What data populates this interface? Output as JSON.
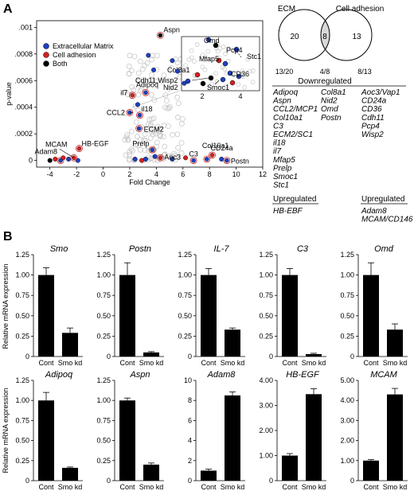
{
  "panel_a_label": "A",
  "panel_b_label": "B",
  "colors": {
    "ecm": "#1f3fbf",
    "cell_adhesion": "#d62020",
    "both": "#000000",
    "bg": "#c8c8c8",
    "bar": "#000000"
  },
  "chart_data": [
    {
      "type": "scatter",
      "xlabel": "Fold Change",
      "ylabel": "p-value",
      "xlim": [
        -5,
        12
      ],
      "ylim": [
        -5e-05,
        0.00105
      ],
      "xticks": [
        -4,
        -2,
        0,
        2,
        4,
        6,
        8,
        10,
        12
      ],
      "yticks": [
        0,
        0.0002,
        0.0004,
        0.0006,
        0.0008,
        0.001
      ],
      "ytick_labels": [
        "0",
        ".0002",
        ".0004",
        ".0006",
        ".0008",
        ".001"
      ],
      "legend_position": "top-left",
      "legend": [
        {
          "name": "Extracellular Matrix",
          "color": "#1f3fbf"
        },
        {
          "name": "Cell adhesion",
          "color": "#d62020"
        },
        {
          "name": "Both",
          "color": "#000000"
        }
      ],
      "labeled_points": [
        {
          "label": "Aspn",
          "x": 4.3,
          "y": 0.00094,
          "cat": "both"
        },
        {
          "label": "Adipoq",
          "x": 3.2,
          "y": 0.00051,
          "cat": "ecm"
        },
        {
          "label": "il7",
          "x": 2.2,
          "y": 0.00049,
          "cat": "cell"
        },
        {
          "label": "il18",
          "x": 2.75,
          "y": 0.00034,
          "cat": "ecm"
        },
        {
          "label": "CCL2",
          "x": 2.0,
          "y": 0.00036,
          "cat": "ecm"
        },
        {
          "label": "ECM2",
          "x": 2.7,
          "y": 0.00024,
          "cat": "ecm"
        },
        {
          "label": "Prelp",
          "x": 3.7,
          "y": 8e-05,
          "cat": "ecm"
        },
        {
          "label": "Aoc3",
          "x": 4.3,
          "y": 2e-05,
          "cat": "cell"
        },
        {
          "label": "C3",
          "x": 6.8,
          "y": 0.0,
          "cat": "ecm"
        },
        {
          "label": "Col10a1",
          "x": 7.8,
          "y": 1e-05,
          "cat": "ecm"
        },
        {
          "label": "CD24a",
          "x": 8.2,
          "y": 4e-05,
          "cat": "cell"
        },
        {
          "label": "Postn",
          "x": 9.3,
          "y": 0.0,
          "cat": "ecm"
        },
        {
          "label": "HB-EGF",
          "x": -1.8,
          "y": 9e-05,
          "cat": "cell"
        },
        {
          "label": "MCAM",
          "x": -2.2,
          "y": 2e-05,
          "cat": "cell"
        },
        {
          "label": "Adam8",
          "x": -3.2,
          "y": 0.0,
          "cat": "ecm"
        }
      ],
      "other_points": [
        {
          "x": -4.0,
          "y": 0.0,
          "cat": "both"
        },
        {
          "x": -3.6,
          "y": 1e-05,
          "cat": "cell"
        },
        {
          "x": -3.0,
          "y": 2e-05,
          "cat": "cell"
        },
        {
          "x": -2.6,
          "y": 1e-05,
          "cat": "ecm"
        },
        {
          "x": -1.9,
          "y": 0.0,
          "cat": "ecm"
        },
        {
          "x": 2.4,
          "y": 1e-05,
          "cat": "ecm"
        },
        {
          "x": 2.9,
          "y": 0.0,
          "cat": "cell"
        },
        {
          "x": 3.2,
          "y": 1e-05,
          "cat": "ecm"
        },
        {
          "x": 3.9,
          "y": 3e-05,
          "cat": "ecm"
        },
        {
          "x": 5.2,
          "y": 1e-05,
          "cat": "ecm"
        },
        {
          "x": 6.2,
          "y": 2e-05,
          "cat": "cell"
        },
        {
          "x": 8.9,
          "y": 1e-05,
          "cat": "ecm"
        },
        {
          "x": 3.4,
          "y": 0.00079,
          "cat": "ecm"
        },
        {
          "x": 3.8,
          "y": 0.00068,
          "cat": "ecm"
        },
        {
          "x": 5.2,
          "y": 0.00075,
          "cat": "ecm"
        },
        {
          "x": 5.6,
          "y": 0.00067,
          "cat": "ecm"
        },
        {
          "x": 6.1,
          "y": 0.00058,
          "cat": "ecm"
        },
        {
          "x": 2.6,
          "y": 0.00042,
          "cat": "ecm"
        }
      ],
      "inset": {
        "xticks": [
          2,
          4
        ],
        "labels": [
          "Omd",
          "Pcp4",
          "Stc1",
          "Mfap5",
          "Col8a1",
          "CD36",
          "Cdh11,Wisp2",
          "Nid2",
          "Smoc1"
        ]
      }
    },
    {
      "type": "table",
      "venn": {
        "left_label": "ECM",
        "right_label": "Cell adhesion",
        "left_only": "20",
        "intersection": "8",
        "right_only": "13",
        "left_ratio": "13/20",
        "mid_ratio": "4/8",
        "right_ratio": "8/13"
      },
      "downregulated_title": "Downregulated",
      "upregulated_title": "Upregulated",
      "down_ecm": [
        "Adipoq",
        "Aspn",
        "CCL2/MCP1",
        "Col10a1",
        "C3",
        "ECM2/SC1",
        "il18",
        "il7",
        "Mfap5",
        "Prelp",
        "Smoc1",
        "Stc1"
      ],
      "down_both": [
        "Col8a1",
        "Nid2",
        "Omd",
        "Postn"
      ],
      "down_cell": [
        "Aoc3/Vap1",
        "CD24a",
        "CD36",
        "Cdh11",
        "Pcp4",
        "Wisp2"
      ],
      "up_ecm": [
        "HB-EBF"
      ],
      "up_cell": [
        "Adam8",
        "MCAM/CD146"
      ]
    },
    {
      "type": "bar",
      "ylabel": "Relative mRNA expression",
      "categories": [
        "Cont",
        "Smo kd"
      ],
      "panels": [
        {
          "title": "Smo",
          "ylim": [
            0,
            1.25
          ],
          "yticks": [
            "0",
            "0.25",
            "0.50",
            "0.75",
            "1.00",
            "1.25"
          ],
          "values": [
            1.0,
            0.29
          ],
          "errors": [
            0.09,
            0.06
          ]
        },
        {
          "title": "Postn",
          "ylim": [
            0,
            1.25
          ],
          "yticks": [
            "0",
            "0.25",
            "0.50",
            "0.75",
            "1.00",
            "1.25"
          ],
          "values": [
            1.0,
            0.05
          ],
          "errors": [
            0.15,
            0.01
          ]
        },
        {
          "title": "IL-7",
          "ylim": [
            0,
            1.25
          ],
          "yticks": [
            "0",
            "0.25",
            "0.50",
            "0.75",
            "1.00",
            "1.25"
          ],
          "values": [
            1.0,
            0.33
          ],
          "errors": [
            0.08,
            0.02
          ]
        },
        {
          "title": "C3",
          "ylim": [
            0,
            1.25
          ],
          "yticks": [
            "0",
            "0.25",
            "0.50",
            "0.75",
            "1.00",
            "1.25"
          ],
          "values": [
            1.0,
            0.03
          ],
          "errors": [
            0.08,
            0.01
          ]
        },
        {
          "title": "Omd",
          "ylim": [
            0,
            1.25
          ],
          "yticks": [
            "0",
            "0.25",
            "0.50",
            "0.75",
            "1.00",
            "1.25"
          ],
          "values": [
            1.0,
            0.33
          ],
          "errors": [
            0.15,
            0.07
          ]
        },
        {
          "title": "Adipoq",
          "ylim": [
            0,
            1.25
          ],
          "yticks": [
            "0",
            "0.25",
            "0.50",
            "0.75",
            "1.00",
            "1.25"
          ],
          "values": [
            1.0,
            0.16
          ],
          "errors": [
            0.1,
            0.01
          ]
        },
        {
          "title": "Aspn",
          "ylim": [
            0,
            1.25
          ],
          "yticks": [
            "0",
            "0.25",
            "0.50",
            "0.75",
            "1.00",
            "1.25"
          ],
          "values": [
            1.0,
            0.2
          ],
          "errors": [
            0.03,
            0.02
          ]
        },
        {
          "title": "Adam8",
          "ylim": [
            0,
            10
          ],
          "yticks": [
            "0",
            "2",
            "4",
            "6",
            "8",
            "10"
          ],
          "values": [
            1.0,
            8.5
          ],
          "errors": [
            0.15,
            0.35
          ]
        },
        {
          "title": "HB-EGF",
          "ylim": [
            0,
            4
          ],
          "yticks": [
            "0",
            "1.00",
            "2.00",
            "3.00",
            "4.00"
          ],
          "values": [
            1.0,
            3.45
          ],
          "errors": [
            0.08,
            0.22
          ]
        },
        {
          "title": "MCAM",
          "ylim": [
            0,
            5
          ],
          "yticks": [
            "0",
            "1.00",
            "2.00",
            "3.00",
            "4.00",
            "5.00"
          ],
          "values": [
            1.0,
            4.3
          ],
          "errors": [
            0.05,
            0.3
          ]
        }
      ]
    }
  ]
}
